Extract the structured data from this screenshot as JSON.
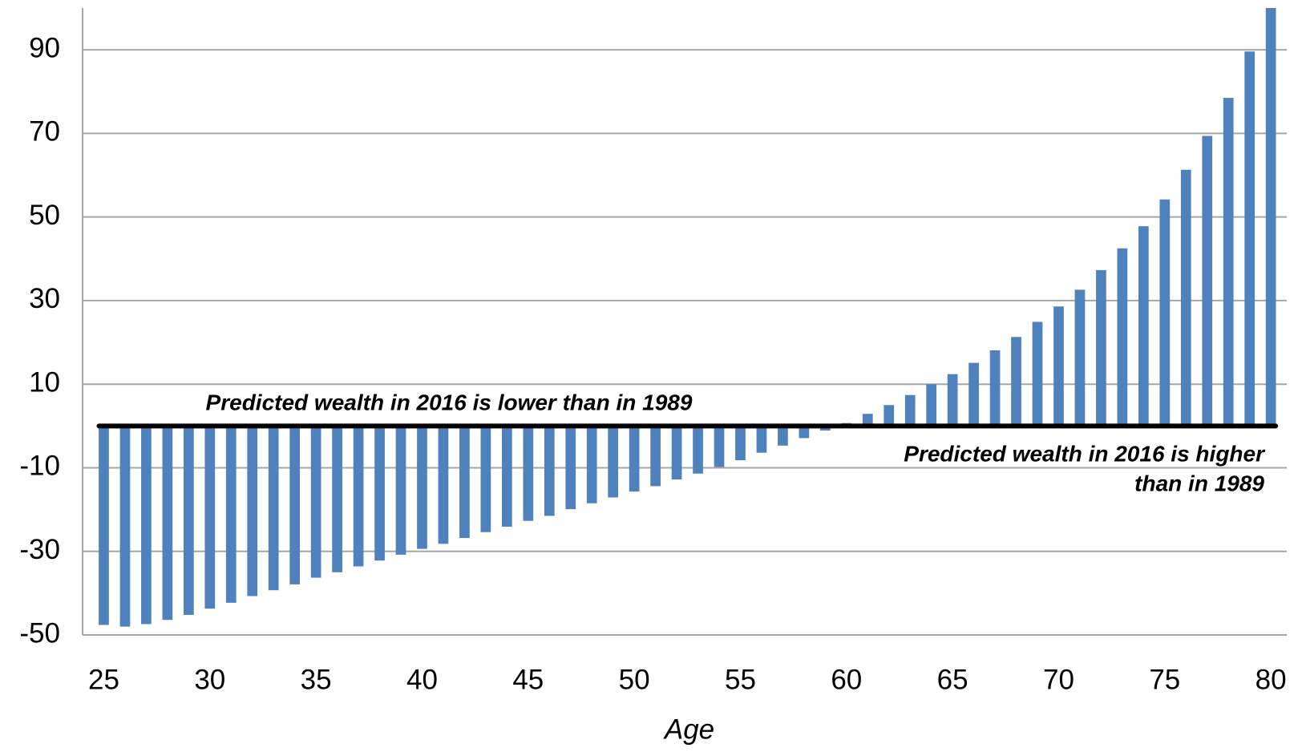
{
  "chart_data": {
    "type": "bar",
    "xlabel": "Age",
    "x": [
      25,
      26,
      27,
      28,
      29,
      30,
      31,
      32,
      33,
      34,
      35,
      36,
      37,
      38,
      39,
      40,
      41,
      42,
      43,
      44,
      45,
      46,
      47,
      48,
      49,
      50,
      51,
      52,
      53,
      54,
      55,
      56,
      57,
      58,
      59,
      60,
      61,
      62,
      63,
      64,
      65,
      66,
      67,
      68,
      69,
      70,
      71,
      72,
      73,
      74,
      75,
      76,
      77,
      78,
      79,
      80
    ],
    "values": [
      -47.6,
      -48,
      -47.4,
      -46.4,
      -45.2,
      -43.7,
      -42.3,
      -40.7,
      -39.3,
      -37.9,
      -36.3,
      -35,
      -33.6,
      -32.2,
      -30.8,
      -29.4,
      -28.2,
      -26.8,
      -25.4,
      -24.1,
      -22.7,
      -21.5,
      -19.9,
      -18.5,
      -17.1,
      -15.7,
      -14.4,
      -12.8,
      -11.4,
      -9.8,
      -8.2,
      -6.4,
      -4.7,
      -2.9,
      -1.1,
      0.7,
      2.9,
      5,
      7.4,
      10,
      12.4,
      15.1,
      18.1,
      21.3,
      24.9,
      28.6,
      32.6,
      37.3,
      42.5,
      47.8,
      54.2,
      61.3,
      69.4,
      78.5,
      89.6,
      100
    ],
    "color": "#4f81bd",
    "xlim": [
      24,
      80.75
    ],
    "xticks": [
      25,
      30,
      35,
      40,
      45,
      50,
      55,
      60,
      65,
      70,
      75,
      80
    ],
    "ylim": [
      -50,
      100
    ],
    "yticks": [
      -50,
      -30,
      -10,
      10,
      30,
      50,
      70,
      90
    ],
    "grid": true,
    "annotations": [
      {
        "lines": [
          "Predicted wealth in 2016 is lower than in 1989"
        ]
      },
      {
        "lines": [
          "Predicted wealth in 2016 is higher",
          "than in 1989"
        ]
      }
    ]
  }
}
